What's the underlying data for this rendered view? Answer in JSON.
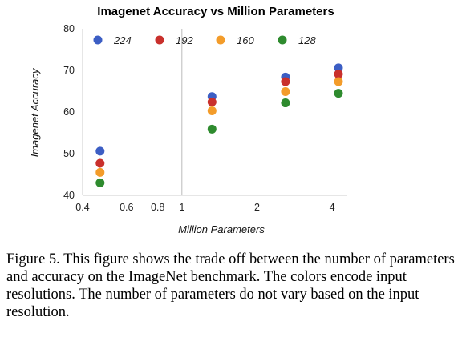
{
  "chart_data": {
    "type": "scatter",
    "title": "Imagenet Accuracy vs Million Parameters",
    "xlabel": "Million Parameters",
    "ylabel": "Imagenet Accuracy",
    "x_scale": "log",
    "xlim": [
      0.4,
      4.6
    ],
    "ylim": [
      40,
      80
    ],
    "x_ticks": [
      {
        "value": 0.4,
        "label": "0.4"
      },
      {
        "value": 0.6,
        "label": "0.6"
      },
      {
        "value": 0.8,
        "label": "0.8"
      },
      {
        "value": 1,
        "label": "1"
      },
      {
        "value": 2,
        "label": "2"
      },
      {
        "value": 4,
        "label": "4"
      }
    ],
    "y_ticks": [
      {
        "value": 40,
        "label": "40"
      },
      {
        "value": 50,
        "label": "50"
      },
      {
        "value": 60,
        "label": "60"
      },
      {
        "value": 70,
        "label": "70"
      },
      {
        "value": 80,
        "label": "80"
      }
    ],
    "grid": {
      "major_gridline_at_x": 1
    },
    "legend_position": "top",
    "x": [
      0.47,
      1.32,
      2.6,
      4.24
    ],
    "series": [
      {
        "name": "224",
        "color": "#3c5ec4",
        "values": [
          50.6,
          63.7,
          68.4,
          70.6
        ]
      },
      {
        "name": "192",
        "color": "#c9302c",
        "values": [
          47.7,
          62.4,
          67.3,
          69.1
        ]
      },
      {
        "name": "160",
        "color": "#f39c2a",
        "values": [
          45.5,
          60.3,
          64.9,
          67.3
        ]
      },
      {
        "name": "128",
        "color": "#2e8b2e",
        "values": [
          43.0,
          55.9,
          62.2,
          64.5
        ]
      }
    ]
  },
  "caption": "Figure 5. This figure shows the trade off between the number of parameters and accuracy on the ImageNet benchmark. The colors encode input resolutions.  The number of parameters do not vary based on the input resolution."
}
